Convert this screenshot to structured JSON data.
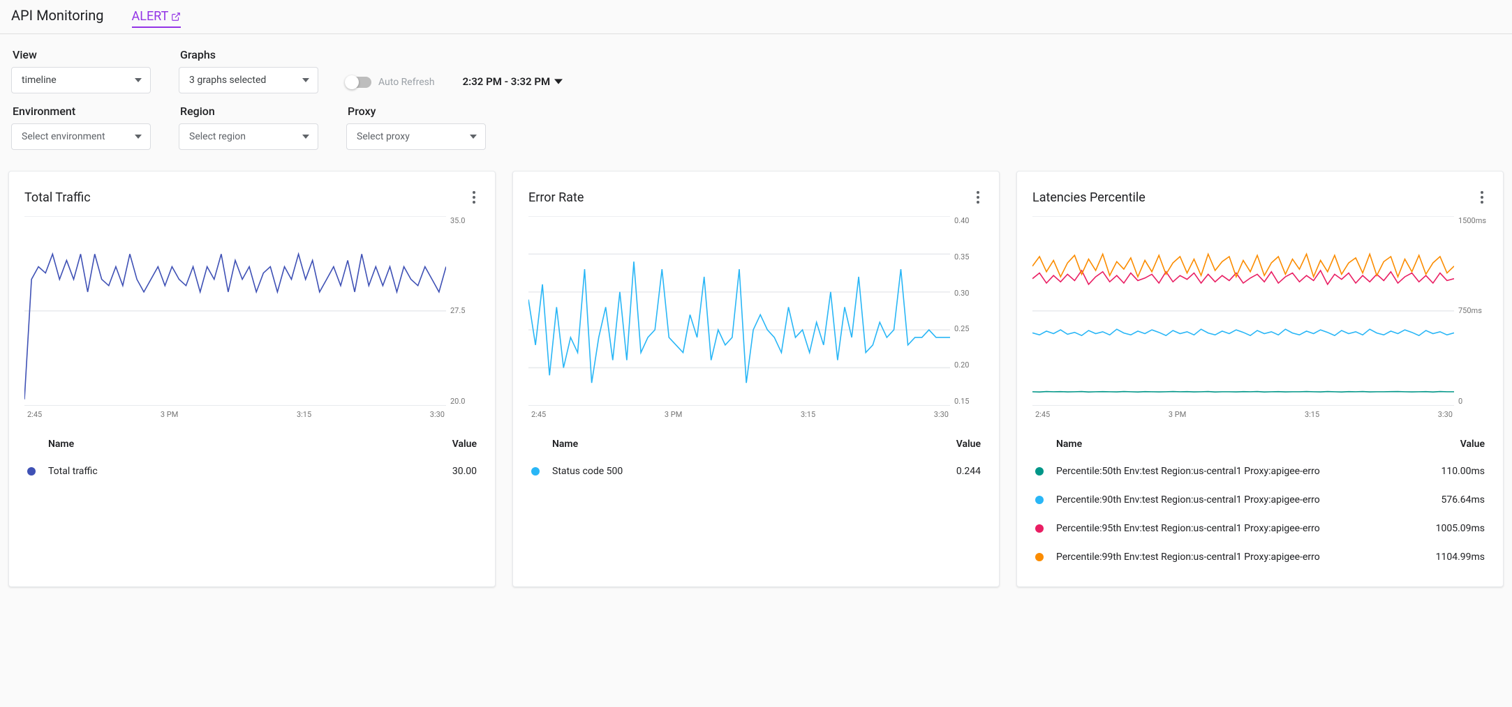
{
  "header": {
    "title": "API Monitoring",
    "alert_link": "ALERT",
    "alert_color": "#9334e6"
  },
  "controls": {
    "view_label": "View",
    "view_value": "timeline",
    "graphs_label": "Graphs",
    "graphs_value": "3 graphs selected",
    "auto_refresh_label": "Auto Refresh",
    "timerange": "2:32 PM - 3:32 PM",
    "env_label": "Environment",
    "env_placeholder": "Select environment",
    "region_label": "Region",
    "region_placeholder": "Select region",
    "proxy_label": "Proxy",
    "proxy_placeholder": "Select proxy"
  },
  "x_axis": {
    "labels": [
      "2:45",
      "3 PM",
      "3:15",
      "3:30"
    ]
  },
  "colors": {
    "grid": "#e8eaed",
    "axis_text": "#757575"
  },
  "traffic": {
    "title": "Total Traffic",
    "ymin": 20.0,
    "ymax": 35.0,
    "yticks": [
      "35.0",
      "27.5",
      "20.0"
    ],
    "color": "#3f51b5",
    "series": [
      20.5,
      30,
      31,
      30.5,
      32,
      30,
      31.5,
      30,
      32,
      29,
      32,
      30,
      29.5,
      31,
      29.5,
      32,
      30,
      29,
      30,
      31,
      29.5,
      31,
      30,
      29.5,
      31,
      29,
      31,
      30,
      32,
      29,
      31.5,
      30,
      31,
      29,
      30.5,
      31,
      29,
      31,
      30,
      32,
      30,
      31.5,
      29,
      30,
      31,
      29.5,
      31.5,
      29,
      32,
      29.5,
      31,
      29.5,
      31,
      29,
      31,
      30,
      29.5,
      31,
      30,
      29,
      31
    ],
    "legend_header_name": "Name",
    "legend_header_value": "Value",
    "legend": [
      {
        "dot": "#3f51b5",
        "name": "Total traffic",
        "value": "30.00"
      }
    ]
  },
  "error": {
    "title": "Error Rate",
    "ymin": 0.15,
    "ymax": 0.4,
    "yticks": [
      "0.40",
      "0.35",
      "0.30",
      "0.25",
      "0.20",
      "0.15"
    ],
    "color": "#29b6f6",
    "series": [
      0.29,
      0.23,
      0.31,
      0.19,
      0.28,
      0.2,
      0.24,
      0.22,
      0.33,
      0.18,
      0.24,
      0.28,
      0.21,
      0.3,
      0.21,
      0.34,
      0.22,
      0.24,
      0.25,
      0.33,
      0.24,
      0.23,
      0.22,
      0.27,
      0.24,
      0.32,
      0.21,
      0.25,
      0.23,
      0.24,
      0.33,
      0.18,
      0.25,
      0.27,
      0.25,
      0.24,
      0.22,
      0.28,
      0.24,
      0.25,
      0.22,
      0.26,
      0.23,
      0.3,
      0.21,
      0.28,
      0.24,
      0.32,
      0.22,
      0.23,
      0.26,
      0.24,
      0.25,
      0.33,
      0.23,
      0.24,
      0.24,
      0.25,
      0.24,
      0.24,
      0.24
    ],
    "legend_header_name": "Name",
    "legend_header_value": "Value",
    "legend": [
      {
        "dot": "#29b6f6",
        "name": "Status code 500",
        "value": "0.244"
      }
    ]
  },
  "latency": {
    "title": "Latencies Percentile",
    "ymin": 0,
    "ymax": 1500,
    "yticks": [
      "1500ms",
      "750ms",
      "0"
    ],
    "series": [
      {
        "color": "#009688",
        "data": [
          110,
          108,
          112,
          110,
          111,
          109,
          110,
          112,
          108,
          110,
          111,
          110,
          109,
          112,
          110,
          108,
          111,
          110,
          109,
          110,
          112,
          110,
          111,
          109,
          110,
          112,
          108,
          110,
          110,
          109,
          111,
          110,
          112,
          108,
          110,
          111,
          109,
          110,
          110,
          112,
          110,
          109,
          112,
          110,
          108,
          111,
          110,
          112,
          109,
          110,
          110,
          111,
          112,
          110,
          109,
          110,
          111,
          108,
          112,
          110,
          110
        ]
      },
      {
        "color": "#29b6f6",
        "data": [
          576,
          560,
          590,
          570,
          600,
          565,
          580,
          555,
          595,
          570,
          585,
          560,
          605,
          575,
          560,
          590,
          570,
          600,
          580,
          555,
          595,
          570,
          585,
          560,
          605,
          575,
          560,
          590,
          570,
          600,
          580,
          555,
          595,
          570,
          585,
          560,
          605,
          575,
          560,
          590,
          570,
          600,
          580,
          555,
          595,
          570,
          585,
          560,
          605,
          575,
          560,
          590,
          570,
          600,
          580,
          555,
          595,
          570,
          585,
          560,
          576
        ]
      },
      {
        "color": "#e91e63",
        "data": [
          1005,
          1050,
          970,
          1030,
          980,
          1040,
          990,
          1070,
          960,
          1020,
          1060,
          980,
          1030,
          970,
          1050,
          990,
          1010,
          1040,
          970,
          1060,
          980,
          1030,
          1000,
          1050,
          970,
          1040,
          980,
          1030,
          990,
          1050,
          970,
          1010,
          1040,
          980,
          1060,
          970,
          1020,
          1050,
          980,
          1030,
          990,
          1070,
          960,
          1040,
          1000,
          1050,
          970,
          1030,
          980,
          1040,
          990,
          1060,
          970,
          1020,
          1050,
          980,
          1030,
          970,
          1050,
          990,
          1005
        ]
      },
      {
        "color": "#fb8c00",
        "data": [
          1104,
          1180,
          1060,
          1150,
          1020,
          1130,
          1190,
          1040,
          1160,
          1070,
          1200,
          1030,
          1140,
          1080,
          1170,
          1020,
          1150,
          1060,
          1190,
          1040,
          1130,
          1180,
          1050,
          1160,
          1030,
          1200,
          1070,
          1140,
          1180,
          1020,
          1150,
          1060,
          1190,
          1030,
          1130,
          1180,
          1040,
          1160,
          1080,
          1200,
          1020,
          1150,
          1060,
          1190,
          1040,
          1130,
          1170,
          1050,
          1200,
          1030,
          1140,
          1180,
          1020,
          1160,
          1060,
          1190,
          1040,
          1130,
          1180,
          1050,
          1104
        ]
      }
    ],
    "legend_header_name": "Name",
    "legend_header_value": "Value",
    "legend": [
      {
        "dot": "#009688",
        "name": "Percentile:50th Env:test Region:us-central1 Proxy:apigee-erro",
        "value": "110.00ms"
      },
      {
        "dot": "#29b6f6",
        "name": "Percentile:90th Env:test Region:us-central1 Proxy:apigee-erro",
        "value": "576.64ms"
      },
      {
        "dot": "#e91e63",
        "name": "Percentile:95th Env:test Region:us-central1 Proxy:apigee-erro",
        "value": "1005.09ms"
      },
      {
        "dot": "#fb8c00",
        "name": "Percentile:99th Env:test Region:us-central1 Proxy:apigee-erro",
        "value": "1104.99ms"
      }
    ]
  }
}
